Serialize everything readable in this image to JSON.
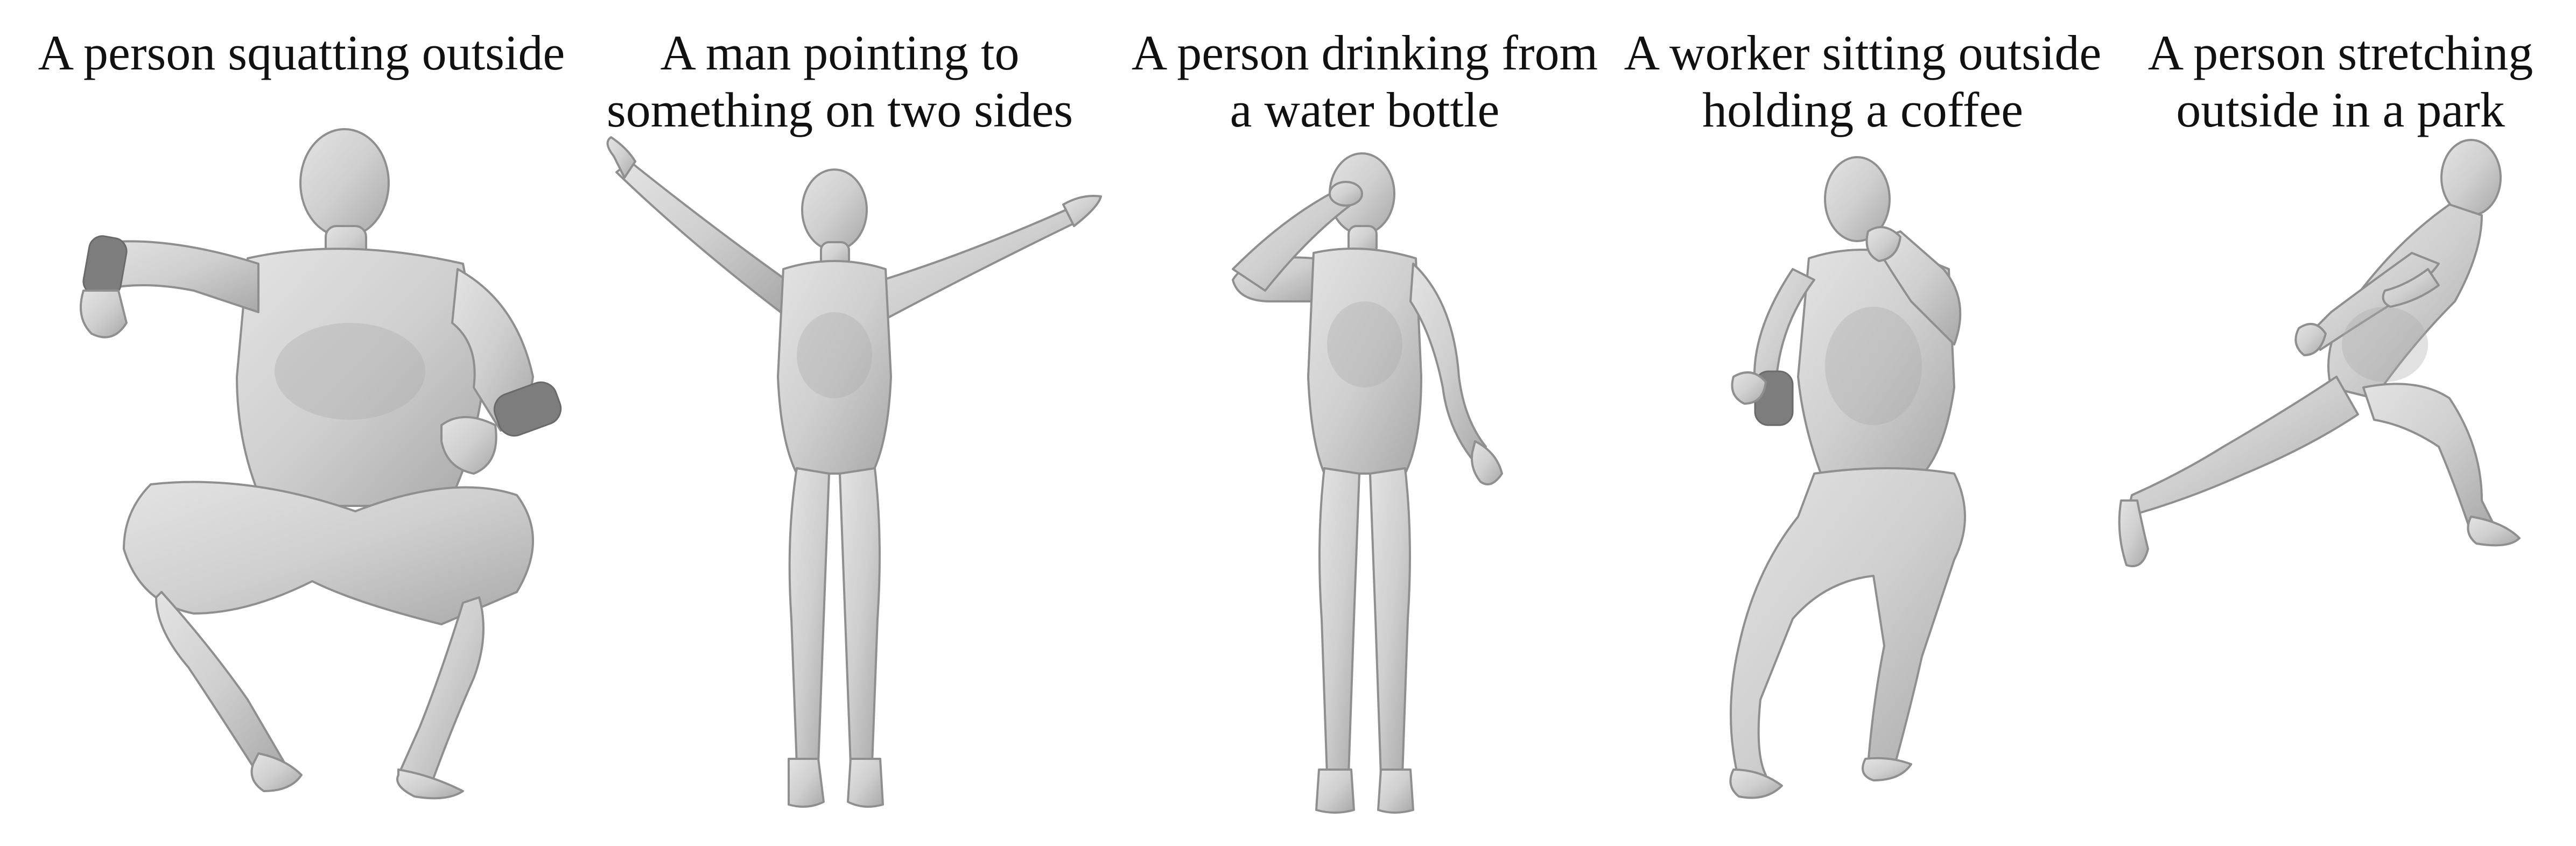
{
  "figure": {
    "panels": [
      {
        "caption": "A person squatting outside",
        "pose": "squatting"
      },
      {
        "caption": "A man pointing to\nsomething on two sides",
        "pose": "pointing-two-sides"
      },
      {
        "caption": "A person drinking from\na water bottle",
        "pose": "drinking-water-bottle"
      },
      {
        "caption": "A worker sitting outside\nholding a coffee",
        "pose": "sitting-holding-coffee"
      },
      {
        "caption": "A person stretching\noutside in a park",
        "pose": "stretching"
      }
    ],
    "colors": {
      "mesh_light": "#d9d9d9",
      "mesh_mid": "#c2c2c2",
      "mesh_dark": "#9a9a9a",
      "caption_text": "#111111",
      "background": "#ffffff"
    }
  }
}
